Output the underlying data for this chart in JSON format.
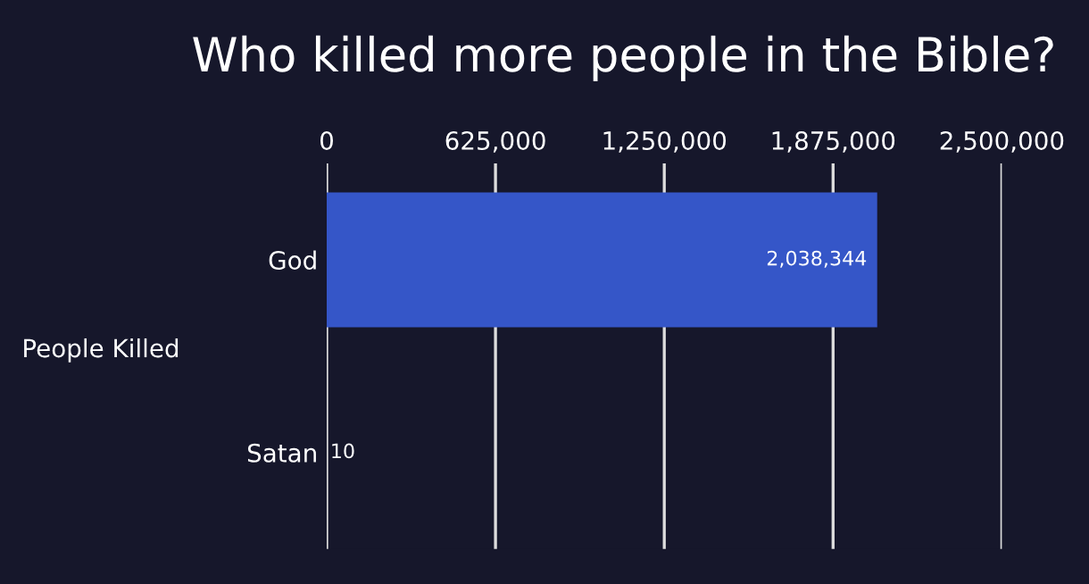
{
  "chart_data": {
    "type": "bar",
    "orientation": "horizontal",
    "title": "Who killed more people in the Bible?",
    "ylabel": "People Killed",
    "categories": [
      "God",
      "Satan"
    ],
    "values": [
      2038344,
      10
    ],
    "colors": [
      "#3556c8",
      "#a34b2c"
    ],
    "value_labels": [
      "2,038,344",
      "10"
    ],
    "xlim": [
      0,
      2500000
    ],
    "xticks": [
      0,
      {
        "value": 625000,
        "label": "625,000"
      },
      {
        "value": 1250000,
        "label": "1,250,000"
      },
      {
        "value": 1875000,
        "label": "1,875,000"
      },
      {
        "value": 2500000,
        "label": "2,500,000"
      }
    ],
    "grid": "x"
  }
}
